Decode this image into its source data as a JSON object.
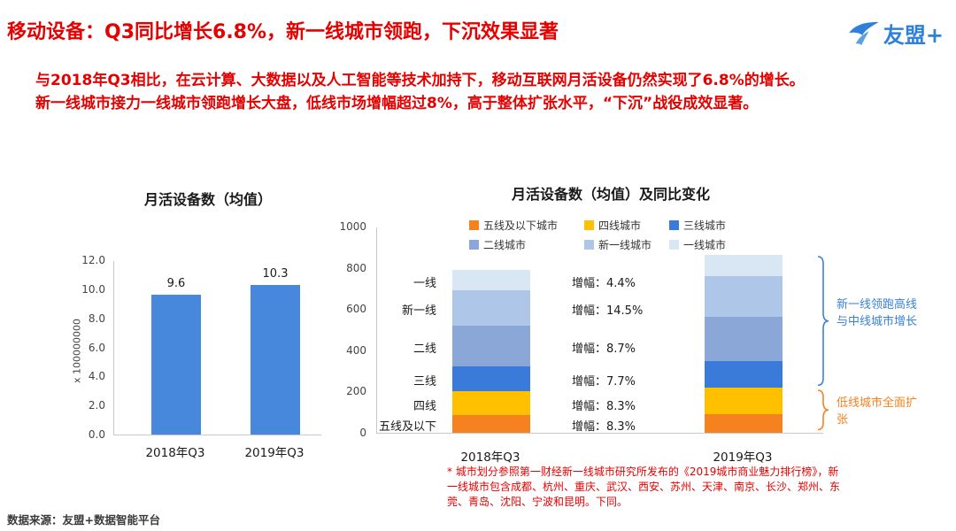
{
  "page": {
    "title": "移动设备：Q3同比增长6.8%，新一线城市领跑，下沉效果显著",
    "logo_text": "友盟+",
    "intro_line1": "与2018年Q3相比，在云计算、大数据以及人工智能等技术加持下，移动互联网月活设备仍然实现了6.8%的增长。",
    "intro_line2": "新一线城市接力一线城市领跑增长大盘，低线市场增幅超过8%，高于整体扩张水平，“下沉”战役成效显著。",
    "footnote": "* 城市划分参照第一财经新一线城市研究所发布的《2019城市商业魅力排行榜》，新一线城市包含成都、杭州、重庆、武汉、西安、苏州、天津、南京、长沙、郑州、东莞、青岛、沈阳、宁波和昆明。下同。",
    "source": "数据来源：友盟+数据智能平台"
  },
  "annotations": {
    "blue_note": "新一线领跑高线与中线城市增长",
    "orange_note": "低线城市全面扩张"
  },
  "colors": {
    "title_red": "#e60000",
    "logo_blue": "#2f80d9",
    "note_blue": "#3a82d9",
    "note_orange": "#f5821f"
  },
  "chart_data": [
    {
      "type": "bar",
      "title": "月活设备数（均值）",
      "categories": [
        "2018年Q3",
        "2019年Q3"
      ],
      "values": [
        9.6,
        10.3
      ],
      "value_labels": [
        "9.6",
        "10.3"
      ],
      "xlabel": "",
      "ylabel": "x 100000000",
      "ylim": [
        0,
        12
      ],
      "y_ticks": [
        "12.0",
        "10.0",
        "8.0",
        "6.0",
        "4.0",
        "2.0",
        "0.0"
      ],
      "bar_color": "#4787dc",
      "grid": false
    },
    {
      "type": "bar",
      "stacked": true,
      "title": "月活设备数（均值）及同比变化",
      "categories": [
        "2018年Q3",
        "2019年Q3"
      ],
      "ylim": [
        0,
        1000
      ],
      "y_ticks": [
        "1000",
        "800",
        "600",
        "400",
        "200",
        "0"
      ],
      "legend_position": "top",
      "grid": false,
      "series": [
        {
          "name": "五线及以下城市",
          "short": "五线及以下",
          "color": "#f5821f",
          "values": [
            85,
            92
          ],
          "growth": "增幅：8.3%"
        },
        {
          "name": "四线城市",
          "short": "四线",
          "color": "#ffc000",
          "values": [
            115,
            125
          ],
          "growth": "增幅：8.3%"
        },
        {
          "name": "三线城市",
          "short": "三线",
          "color": "#3a7ad9",
          "values": [
            120,
            129
          ],
          "growth": "增幅：7.7%"
        },
        {
          "name": "二线城市",
          "short": "二线",
          "color": "#8aa7d8",
          "values": [
            200,
            217
          ],
          "growth": "增幅：8.7%"
        },
        {
          "name": "新一线城市",
          "short": "新一线",
          "color": "#aec7e8",
          "values": [
            170,
            195
          ],
          "growth": "增幅：14.5%"
        },
        {
          "name": "一线城市",
          "short": "一线",
          "color": "#d9e7f5",
          "values": [
            100,
            104
          ],
          "growth": "增幅：4.4%"
        }
      ]
    }
  ]
}
